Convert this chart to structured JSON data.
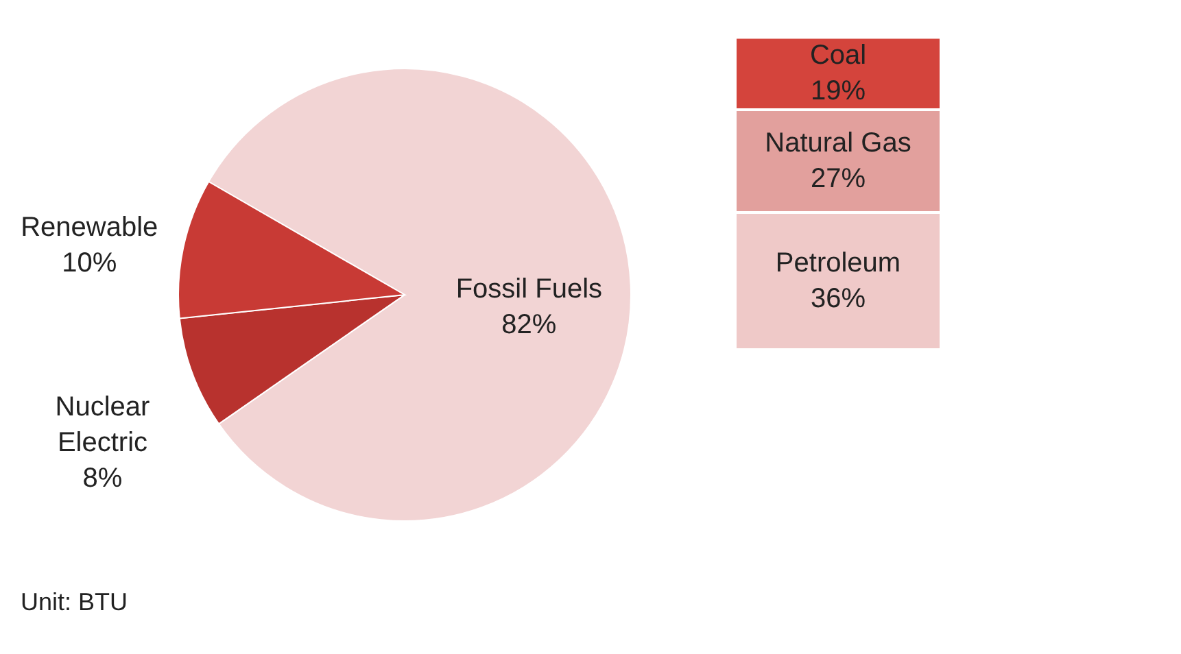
{
  "chart_data": [
    {
      "type": "pie",
      "categories": [
        "Fossil Fuels",
        "Nuclear Electric",
        "Renewable"
      ],
      "values": [
        82,
        8,
        10
      ],
      "value_labels": [
        "82%",
        "8%",
        "10%"
      ],
      "colors": [
        "#f2d4d4",
        "#b8322e",
        "#c83a35"
      ],
      "legend": false,
      "annotations": [
        "Unit: BTU"
      ]
    },
    {
      "type": "bar",
      "stacked": true,
      "categories": [
        null
      ],
      "legend": false,
      "series": [
        {
          "name": "Petroleum",
          "color": "#efc9c8",
          "values": [
            36
          ],
          "value_labels": [
            "36%"
          ]
        },
        {
          "name": "Natural Gas",
          "color": "#e2a09d",
          "values": [
            27
          ],
          "value_labels": [
            "27%"
          ]
        },
        {
          "name": "Coal",
          "color": "#d4443c",
          "values": [
            19
          ],
          "value_labels": [
            "19%"
          ]
        }
      ]
    }
  ]
}
